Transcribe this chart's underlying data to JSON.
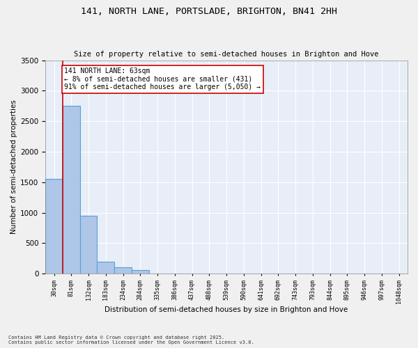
{
  "title": "141, NORTH LANE, PORTSLADE, BRIGHTON, BN41 2HH",
  "subtitle": "Size of property relative to semi-detached houses in Brighton and Hove",
  "xlabel": "Distribution of semi-detached houses by size in Brighton and Hove",
  "ylabel": "Number of semi-detached properties",
  "bar_values": [
    1560,
    2750,
    950,
    200,
    110,
    55,
    0,
    0,
    0,
    0,
    0,
    0,
    0,
    0,
    0,
    0,
    0,
    0,
    0,
    0,
    0
  ],
  "bar_labels": [
    "30sqm",
    "81sqm",
    "132sqm",
    "183sqm",
    "234sqm",
    "284sqm",
    "335sqm",
    "386sqm",
    "437sqm",
    "488sqm",
    "539sqm",
    "590sqm",
    "641sqm",
    "692sqm",
    "743sqm",
    "793sqm",
    "844sqm",
    "895sqm",
    "946sqm",
    "997sqm",
    "1048sqm"
  ],
  "bar_color": "#aec6e8",
  "bar_edge_color": "#5a9fd4",
  "annotation_text_line1": "141 NORTH LANE: 63sqm",
  "annotation_text_line2": "← 8% of semi-detached houses are smaller (431)",
  "annotation_text_line3": "91% of semi-detached houses are larger (5,050) →",
  "annotation_box_color": "#ffffff",
  "annotation_box_edge": "#cc0000",
  "property_line_color": "#cc0000",
  "ylim": [
    0,
    3500
  ],
  "yticks": [
    0,
    500,
    1000,
    1500,
    2000,
    2500,
    3000,
    3500
  ],
  "background_color": "#e8eef7",
  "fig_background_color": "#f0f0f0",
  "footer_line1": "Contains HM Land Registry data © Crown copyright and database right 2025.",
  "footer_line2": "Contains public sector information licensed under the Open Government Licence v3.0."
}
